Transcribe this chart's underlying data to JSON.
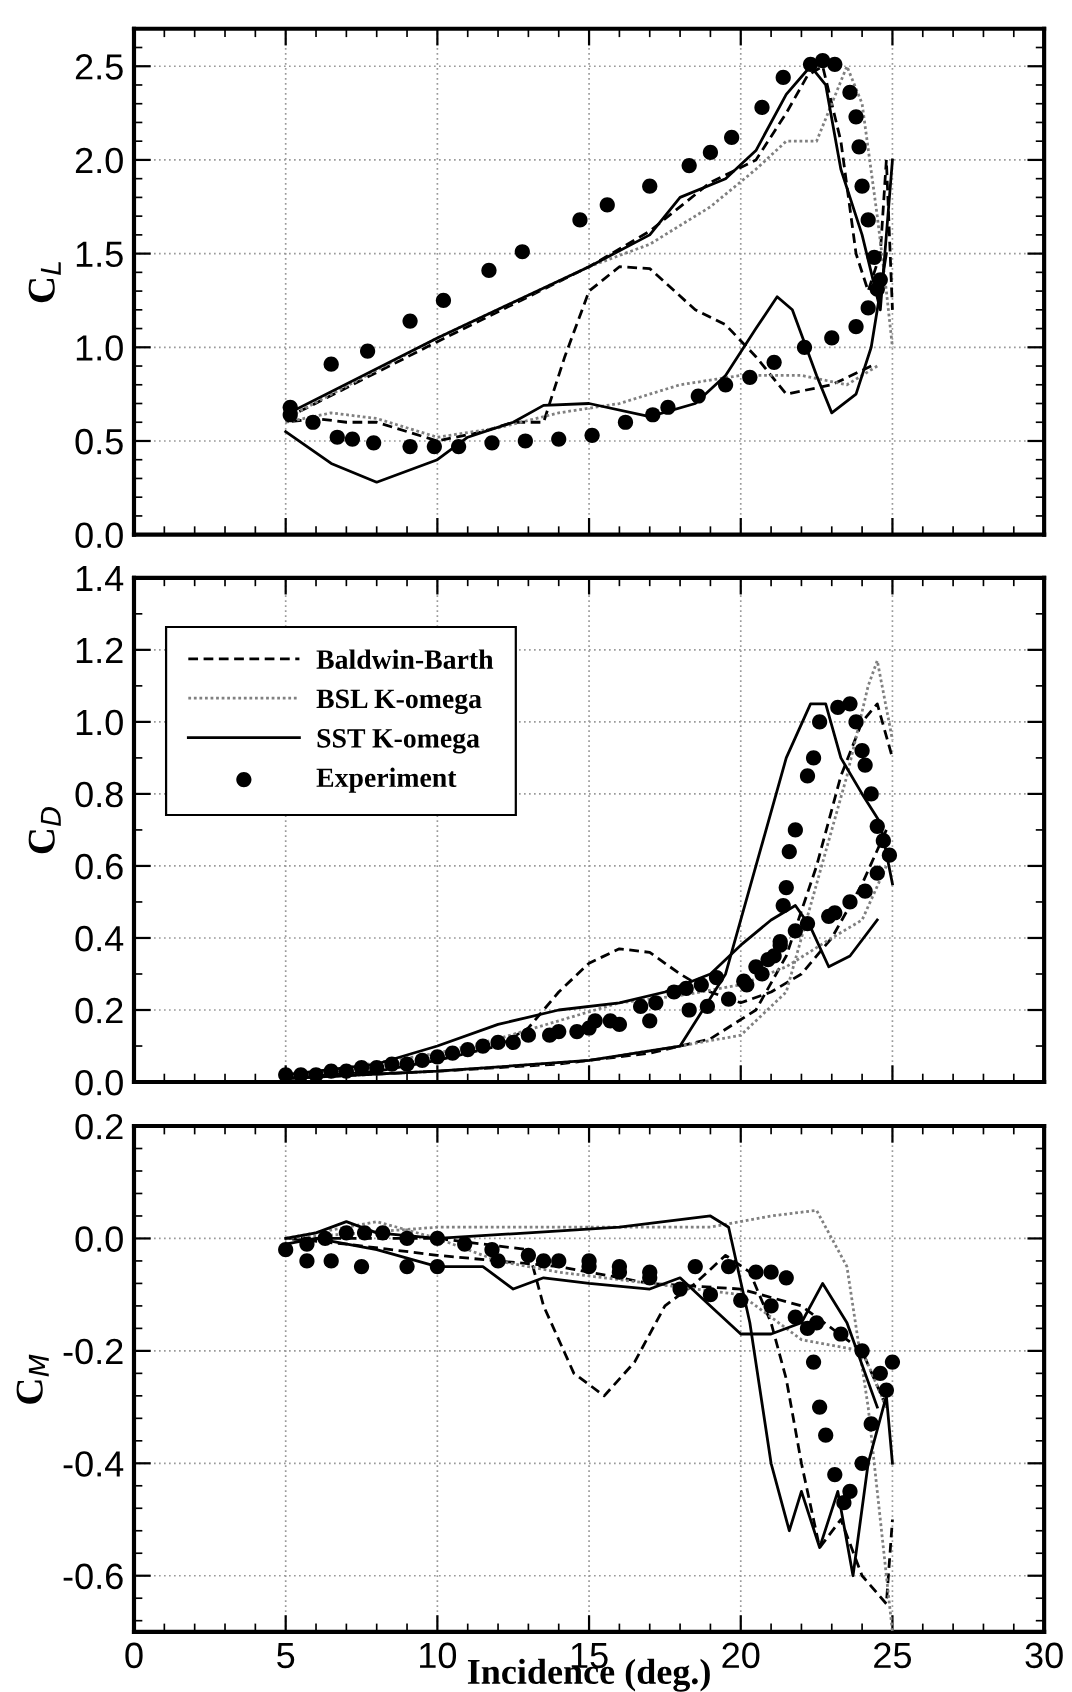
{
  "chart_data": [
    {
      "type": "line",
      "ylabel": "C$_{L}$",
      "xlim": [
        0,
        30
      ],
      "xticks": [
        0,
        5,
        10,
        15,
        20,
        25,
        30
      ],
      "ylim": [
        0,
        2.7
      ],
      "yticks": [
        {
          "value": 0,
          "label": "0.0"
        },
        {
          "value": 0.5,
          "label": "0.5"
        },
        {
          "value": 1,
          "label": "1.0"
        },
        {
          "value": 1.5,
          "label": "1.5"
        },
        {
          "value": 2,
          "label": "2.0"
        },
        {
          "value": 2.5,
          "label": "2.5"
        }
      ],
      "tick_labels": "y",
      "grid": true,
      "series": [
        {
          "color": "#000000",
          "line_style": "dashed",
          "marker": "none",
          "x": [
            5,
            10,
            15,
            17,
            19,
            20.5,
            21.5,
            22.2,
            22.7,
            23.3,
            23.8,
            24.2,
            24.6,
            24.8,
            25
          ],
          "values": [
            0.62,
            1.03,
            1.43,
            1.62,
            1.88,
            2.0,
            2.25,
            2.45,
            2.5,
            2.1,
            1.5,
            1.3,
            1.5,
            2.0,
            1.2
          ]
        },
        {
          "color": "#000000",
          "line_style": "dashed",
          "marker": "none",
          "x": [
            24.3,
            23,
            21.5,
            20.5,
            19.5,
            18.5,
            17,
            16,
            15,
            14.2,
            13.5,
            12.5,
            11.5,
            10,
            9,
            8,
            7,
            6,
            5
          ],
          "values": [
            0.9,
            0.8,
            0.75,
            0.95,
            1.12,
            1.2,
            1.42,
            1.43,
            1.3,
            0.95,
            0.6,
            0.6,
            0.55,
            0.5,
            0.55,
            0.6,
            0.6,
            0.62,
            0.6
          ]
        },
        {
          "color": "#808080",
          "line_style": "dotted",
          "marker": "none",
          "x": [
            5,
            10,
            15,
            17,
            19,
            20.5,
            21.5,
            22.5,
            23,
            23.5,
            24,
            24.5,
            24.8,
            25
          ],
          "values": [
            0.62,
            1.05,
            1.43,
            1.55,
            1.75,
            1.95,
            2.1,
            2.1,
            2.3,
            2.5,
            2.3,
            1.7,
            1.3,
            1.0
          ]
        },
        {
          "color": "#808080",
          "line_style": "dotted",
          "marker": "none",
          "x": [
            24.5,
            23.5,
            22,
            20,
            18,
            16,
            14,
            12,
            10,
            8,
            6.5,
            5
          ],
          "values": [
            0.9,
            0.8,
            0.85,
            0.85,
            0.8,
            0.7,
            0.65,
            0.57,
            0.52,
            0.62,
            0.65,
            0.6
          ]
        },
        {
          "color": "#000000",
          "line_style": "solid",
          "marker": "none",
          "x": [
            5,
            10,
            15,
            17,
            18,
            19.5,
            20.5,
            21.5,
            22.3,
            22.8,
            23.3,
            24,
            24.6,
            25
          ],
          "values": [
            0.64,
            1.05,
            1.43,
            1.6,
            1.8,
            1.9,
            2.05,
            2.35,
            2.5,
            2.4,
            1.95,
            1.6,
            1.2,
            2.0
          ]
        },
        {
          "color": "#000000",
          "line_style": "solid",
          "marker": "none",
          "x": [
            24.8,
            24.3,
            23.8,
            23,
            22.5,
            21.7,
            21.2,
            20.5,
            19.5,
            18.5,
            17,
            15,
            13.5,
            12.5,
            11,
            10,
            8,
            6.5,
            5
          ],
          "values": [
            1.5,
            1.0,
            0.75,
            0.65,
            0.85,
            1.2,
            1.27,
            1.1,
            0.85,
            0.7,
            0.63,
            0.7,
            0.69,
            0.6,
            0.52,
            0.4,
            0.28,
            0.38,
            0.55
          ]
        },
        {
          "type": "scatter",
          "color": "#000000",
          "marker": "circle",
          "x": [
            5.15,
            6.5,
            7.7,
            9.1,
            10.2,
            11.7,
            12.8,
            14.7,
            15.6,
            17,
            18.3,
            19,
            19.7,
            20.7,
            21.4,
            22.3,
            22.7,
            23.1,
            23.6,
            23.8,
            23.9,
            24.0,
            24.2,
            24.4,
            24.6,
            24.5,
            24.2,
            23.8,
            23.0,
            22.1,
            21.1,
            20.3,
            19.5,
            18.6,
            17.6,
            17.1,
            16.2,
            15.1,
            14.0,
            12.9,
            11.8,
            10.7,
            9.9,
            9.1,
            7.9,
            7.2,
            6.7,
            5.9,
            5.15
          ],
          "values": [
            0.68,
            0.91,
            0.98,
            1.14,
            1.25,
            1.41,
            1.51,
            1.68,
            1.76,
            1.86,
            1.97,
            2.04,
            2.12,
            2.28,
            2.44,
            2.51,
            2.53,
            2.51,
            2.36,
            2.23,
            2.07,
            1.86,
            1.68,
            1.48,
            1.36,
            1.31,
            1.21,
            1.11,
            1.05,
            1.0,
            0.92,
            0.84,
            0.8,
            0.74,
            0.68,
            0.64,
            0.6,
            0.53,
            0.51,
            0.5,
            0.49,
            0.47,
            0.47,
            0.47,
            0.49,
            0.51,
            0.52,
            0.6,
            0.64
          ]
        }
      ]
    },
    {
      "type": "line",
      "ylabel": "C$_{D}$",
      "xlim": [
        0,
        30
      ],
      "xticks": [
        0,
        5,
        10,
        15,
        20,
        25,
        30
      ],
      "ylim": [
        0,
        1.4
      ],
      "yticks": [
        {
          "value": 0,
          "label": "0.0"
        },
        {
          "value": 0.2,
          "label": "0.2"
        },
        {
          "value": 0.4,
          "label": "0.4"
        },
        {
          "value": 0.6,
          "label": "0.6"
        },
        {
          "value": 0.8,
          "label": "0.8"
        },
        {
          "value": 1,
          "label": "1.0"
        },
        {
          "value": 1.2,
          "label": "1.2"
        },
        {
          "value": 1.4,
          "label": "1.4"
        }
      ],
      "tick_labels": "y",
      "grid": true,
      "legend": "top left",
      "series": [
        {
          "name": "Baldwin-Barth",
          "color": "#000000",
          "line_style": "dashed",
          "marker": "none",
          "x": [
            5,
            10,
            14,
            17,
            19,
            20.5,
            21.5,
            22.5,
            23.3,
            24,
            24.5,
            25
          ],
          "values": [
            0.01,
            0.03,
            0.05,
            0.08,
            0.12,
            0.2,
            0.35,
            0.6,
            0.85,
            1.0,
            1.05,
            0.9
          ]
        },
        {
          "color": "#000000",
          "line_style": "dashed",
          "marker": "none",
          "x": [
            24.8,
            24,
            23,
            22,
            21,
            20,
            19,
            18,
            17,
            16,
            15,
            14,
            13,
            12,
            10,
            8,
            5
          ],
          "values": [
            0.7,
            0.55,
            0.4,
            0.3,
            0.25,
            0.22,
            0.25,
            0.3,
            0.36,
            0.37,
            0.33,
            0.25,
            0.15,
            0.1,
            0.06,
            0.03,
            0.01
          ]
        },
        {
          "name": "BSL K-omega",
          "color": "#808080",
          "line_style": "dotted",
          "marker": "none",
          "x": [
            5,
            10,
            15,
            18,
            20,
            21.5,
            22.5,
            23.5,
            24.2,
            24.5,
            25
          ],
          "values": [
            0.01,
            0.03,
            0.06,
            0.1,
            0.13,
            0.25,
            0.55,
            0.85,
            1.1,
            1.17,
            0.95
          ]
        },
        {
          "color": "#808080",
          "line_style": "dotted",
          "marker": "none",
          "x": [
            24.8,
            24,
            23,
            21.5,
            20,
            18,
            16,
            14,
            12,
            10,
            7,
            5
          ],
          "values": [
            0.6,
            0.45,
            0.4,
            0.32,
            0.27,
            0.24,
            0.22,
            0.17,
            0.12,
            0.08,
            0.04,
            0.01
          ]
        },
        {
          "name": "SST K-omega",
          "color": "#000000",
          "line_style": "solid",
          "marker": "none",
          "x": [
            5,
            10,
            15,
            18,
            19.5,
            20.5,
            21.5,
            22.3,
            22.8,
            23.3,
            24,
            24.6,
            25
          ],
          "values": [
            0.01,
            0.03,
            0.06,
            0.1,
            0.3,
            0.6,
            0.9,
            1.05,
            1.05,
            0.9,
            0.8,
            0.72,
            0.55
          ]
        },
        {
          "color": "#000000",
          "line_style": "solid",
          "marker": "none",
          "x": [
            24.5,
            23.6,
            22.9,
            22.3,
            21.8,
            21,
            20,
            19,
            17.5,
            16,
            14,
            12,
            10,
            8,
            5
          ],
          "values": [
            0.45,
            0.35,
            0.32,
            0.43,
            0.49,
            0.45,
            0.38,
            0.3,
            0.25,
            0.22,
            0.2,
            0.16,
            0.1,
            0.05,
            0.02
          ]
        },
        {
          "name": "Experiment",
          "type": "scatter",
          "color": "#000000",
          "marker": "circle",
          "x": [
            5,
            6,
            7,
            8,
            9,
            10,
            11,
            12,
            13,
            14,
            15,
            16,
            17,
            18.3,
            18.9,
            19.6,
            20.2,
            20.7,
            21.1,
            21.3,
            21.4,
            21.5,
            21.6,
            21.8,
            22.2,
            22.4,
            22.6,
            23.2,
            23.6,
            23.8,
            24.0,
            24.1,
            24.3,
            24.5,
            24.7,
            24.9,
            24.5,
            24.1,
            23.6,
            23.1,
            22.9,
            22.2,
            21.8,
            21.3,
            20.9,
            20.5,
            20.1,
            19.2,
            18.7,
            18.2,
            17.8,
            17.2,
            16.7,
            15.7,
            15.2,
            14.6,
            13.7,
            12.5,
            11.5,
            10.5,
            9.5,
            8.5,
            7.5,
            6.5,
            5.5
          ],
          "values": [
            0.02,
            0.02,
            0.03,
            0.04,
            0.05,
            0.07,
            0.09,
            0.11,
            0.13,
            0.14,
            0.15,
            0.16,
            0.17,
            0.2,
            0.21,
            0.23,
            0.27,
            0.3,
            0.35,
            0.39,
            0.49,
            0.54,
            0.64,
            0.7,
            0.85,
            0.9,
            1.0,
            1.04,
            1.05,
            1.0,
            0.92,
            0.88,
            0.8,
            0.71,
            0.67,
            0.63,
            0.58,
            0.53,
            0.5,
            0.47,
            0.46,
            0.44,
            0.42,
            0.38,
            0.34,
            0.32,
            0.28,
            0.29,
            0.27,
            0.26,
            0.25,
            0.22,
            0.21,
            0.17,
            0.17,
            0.14,
            0.13,
            0.11,
            0.1,
            0.08,
            0.06,
            0.05,
            0.04,
            0.03,
            0.02
          ]
        }
      ]
    },
    {
      "type": "line",
      "ylabel": "C$_{M}$",
      "xlabel": "Incidence (deg.)",
      "xlim": [
        0,
        30
      ],
      "xticks": [
        0,
        5,
        10,
        15,
        20,
        25,
        30
      ],
      "ylim": [
        -0.7,
        0.2
      ],
      "yticks": [
        {
          "value": -0.6,
          "label": "-0.6"
        },
        {
          "value": -0.4,
          "label": "-0.4"
        },
        {
          "value": -0.2,
          "label": "-0.2"
        },
        {
          "value": 0,
          "label": "0.0"
        },
        {
          "value": 0.2,
          "label": "0.2"
        }
      ],
      "grid": true,
      "series": [
        {
          "color": "#000000",
          "line_style": "dashed",
          "marker": "none",
          "x": [
            5,
            10,
            13,
            13.5,
            14.5,
            15.5,
            16.5,
            17.5,
            18.5,
            19.5,
            20.3,
            21,
            21.5,
            22,
            22.6,
            23.3,
            24,
            24.8,
            25
          ],
          "values": [
            0.0,
            0.0,
            -0.02,
            -0.12,
            -0.24,
            -0.28,
            -0.22,
            -0.12,
            -0.08,
            -0.03,
            -0.06,
            -0.15,
            -0.25,
            -0.4,
            -0.55,
            -0.5,
            -0.6,
            -0.65,
            -0.5
          ]
        },
        {
          "color": "#000000",
          "line_style": "dashed",
          "marker": "none",
          "x": [
            24.8,
            24,
            22,
            20,
            17,
            14,
            10,
            7,
            5
          ],
          "values": [
            -0.3,
            -0.2,
            -0.12,
            -0.09,
            -0.08,
            -0.05,
            -0.03,
            -0.01,
            0.0
          ]
        },
        {
          "color": "#808080",
          "line_style": "dotted",
          "marker": "none",
          "x": [
            5,
            10,
            15,
            19,
            21,
            22.5,
            23.5,
            24.2,
            24.6,
            25
          ],
          "values": [
            0.0,
            0.02,
            0.02,
            0.02,
            0.04,
            0.05,
            -0.05,
            -0.3,
            -0.5,
            -0.7
          ]
        },
        {
          "color": "#808080",
          "line_style": "dotted",
          "marker": "none",
          "x": [
            24.8,
            24,
            22,
            20,
            17,
            14,
            12,
            10,
            8,
            5
          ],
          "values": [
            -0.3,
            -0.2,
            -0.18,
            -0.1,
            -0.08,
            -0.06,
            -0.04,
            0.0,
            0.03,
            0.0
          ]
        },
        {
          "color": "#000000",
          "line_style": "solid",
          "marker": "none",
          "x": [
            5,
            6,
            7,
            8,
            10,
            13,
            16,
            19,
            19.6,
            20.3,
            21,
            21.6,
            22,
            22.6,
            23.2,
            23.7,
            24.2,
            24.8,
            25
          ],
          "values": [
            0.0,
            0.01,
            0.03,
            0.01,
            0.0,
            0.01,
            0.02,
            0.04,
            0.02,
            -0.15,
            -0.4,
            -0.52,
            -0.45,
            -0.55,
            -0.45,
            -0.6,
            -0.4,
            -0.28,
            -0.4
          ]
        },
        {
          "color": "#000000",
          "line_style": "solid",
          "marker": "none",
          "x": [
            24.5,
            23.5,
            22.7,
            22,
            21,
            20,
            19,
            18,
            17,
            15,
            13.5,
            12.5,
            11.5,
            10,
            8,
            6,
            5
          ],
          "values": [
            -0.3,
            -0.15,
            -0.08,
            -0.15,
            -0.17,
            -0.17,
            -0.12,
            -0.07,
            -0.09,
            -0.08,
            -0.07,
            -0.09,
            -0.05,
            -0.05,
            -0.02,
            0.0,
            -0.01
          ]
        },
        {
          "type": "scatter",
          "color": "#000000",
          "marker": "circle",
          "x": [
            5,
            5.7,
            6.3,
            7,
            7.6,
            8.2,
            9,
            10,
            10.9,
            11.8,
            13,
            14,
            15,
            16,
            17,
            18,
            19,
            20,
            21,
            21.8,
            22.5,
            23.3,
            24,
            24.6,
            25,
            24.8,
            24.3,
            24,
            23.6,
            23.4,
            23.1,
            22.8,
            22.6,
            22.4,
            22.2,
            21.5,
            21,
            20.5,
            19.6,
            18.5,
            17,
            16,
            15,
            13.5,
            12,
            10,
            9,
            7.5,
            6.5,
            5.7
          ],
          "values": [
            -0.02,
            -0.01,
            0.0,
            0.01,
            0.01,
            0.01,
            0.0,
            0.0,
            -0.01,
            -0.02,
            -0.03,
            -0.04,
            -0.05,
            -0.06,
            -0.07,
            -0.09,
            -0.1,
            -0.11,
            -0.12,
            -0.14,
            -0.15,
            -0.17,
            -0.2,
            -0.24,
            -0.22,
            -0.27,
            -0.33,
            -0.4,
            -0.45,
            -0.47,
            -0.42,
            -0.35,
            -0.3,
            -0.22,
            -0.16,
            -0.07,
            -0.06,
            -0.06,
            -0.05,
            -0.05,
            -0.06,
            -0.05,
            -0.04,
            -0.04,
            -0.04,
            -0.05,
            -0.05,
            -0.05,
            -0.04,
            -0.04
          ]
        }
      ]
    }
  ]
}
